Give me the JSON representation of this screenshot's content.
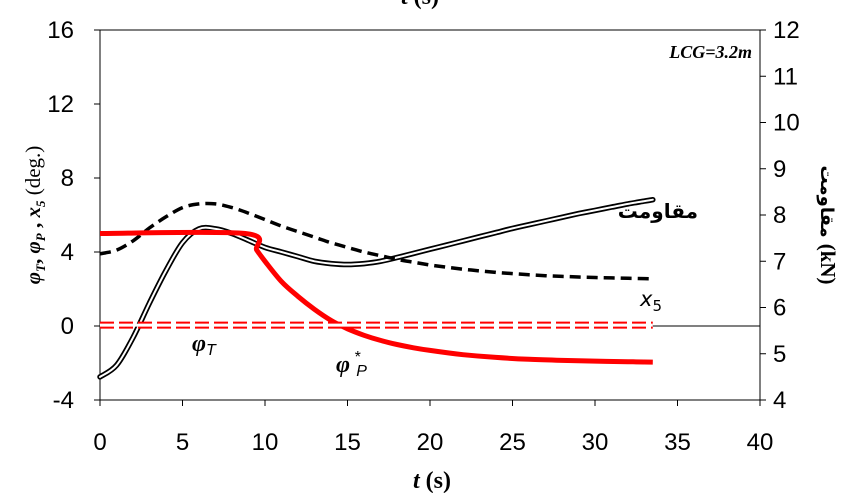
{
  "chart_data": {
    "type": "line",
    "x_axis": {
      "label_var": "t",
      "label_unit": "(s)",
      "range": [
        0,
        40
      ],
      "ticks": [
        0,
        5,
        10,
        15,
        20,
        25,
        30,
        35,
        40
      ],
      "tick_labels": [
        "0",
        "5",
        "10",
        "15",
        "20",
        "25",
        "30",
        "35",
        "40"
      ]
    },
    "y_left": {
      "label_vars": "φT, φP , x5",
      "label_unit": "(deg.)",
      "range": [
        -4,
        16
      ],
      "ticks": [
        -4,
        0,
        4,
        8,
        12,
        16
      ],
      "tick_labels": [
        "-4",
        "0",
        "4",
        "8",
        "12",
        "16"
      ]
    },
    "y_right": {
      "label_text": "مقاومت",
      "label_unit": "(kN)",
      "range": [
        4,
        12
      ],
      "ticks": [
        4,
        5,
        6,
        7,
        8,
        9,
        10,
        11,
        12
      ],
      "tick_labels": [
        "4",
        "5",
        "6",
        "7",
        "8",
        "9",
        "10",
        "11",
        "12"
      ]
    },
    "top_axis_title_partial": "t (s)",
    "grid": false,
    "box_label": "LCG=3.2m",
    "colors": {
      "phi_T": "#ff0000",
      "phi_P": "#ff0000",
      "x5": "#000000",
      "resistance": "#000000"
    },
    "series": [
      {
        "key": "resistance",
        "label": "مقاومت",
        "axis": "right",
        "style": "double-line",
        "x": [
          0,
          1,
          2,
          3,
          4,
          5,
          6,
          7,
          8,
          9,
          10,
          11,
          12,
          13,
          14,
          15,
          16,
          17,
          18,
          19,
          20,
          21,
          22,
          23,
          24,
          25,
          26,
          27,
          28,
          29,
          30,
          31,
          32,
          33,
          33.5
        ],
        "y": [
          4.5,
          4.75,
          5.35,
          6.1,
          6.8,
          7.4,
          7.7,
          7.7,
          7.6,
          7.45,
          7.3,
          7.2,
          7.1,
          7.0,
          6.95,
          6.93,
          6.95,
          7.0,
          7.08,
          7.17,
          7.26,
          7.35,
          7.44,
          7.53,
          7.62,
          7.71,
          7.79,
          7.87,
          7.95,
          8.03,
          8.1,
          8.17,
          8.24,
          8.3,
          8.33
        ]
      },
      {
        "key": "x5",
        "label": "x5",
        "axis": "left",
        "style": "dashed",
        "x": [
          0,
          1,
          2,
          3,
          4,
          5,
          6,
          7,
          8,
          9,
          10,
          11,
          12,
          13,
          14,
          15,
          16,
          17,
          18,
          19,
          20,
          21,
          22,
          23,
          24,
          25,
          26,
          27,
          28,
          29,
          30,
          31,
          32,
          33,
          33.5
        ],
        "y": [
          3.9,
          4.1,
          4.6,
          5.3,
          5.9,
          6.4,
          6.6,
          6.6,
          6.4,
          6.1,
          5.75,
          5.4,
          5.1,
          4.8,
          4.5,
          4.25,
          4.0,
          3.8,
          3.6,
          3.45,
          3.3,
          3.18,
          3.07,
          2.98,
          2.9,
          2.83,
          2.77,
          2.72,
          2.68,
          2.65,
          2.62,
          2.6,
          2.58,
          2.56,
          2.55
        ]
      },
      {
        "key": "phi_P",
        "label": "φ*P",
        "axis": "left",
        "style": "thick-solid",
        "x": [
          0,
          8.8,
          9.5,
          10,
          11,
          12,
          13,
          14,
          15,
          16,
          17,
          18,
          19,
          20,
          22,
          24,
          26,
          28,
          30,
          32,
          33.5
        ],
        "y": [
          5.0,
          5.0,
          4.1,
          3.5,
          2.4,
          1.6,
          0.9,
          0.3,
          -0.15,
          -0.5,
          -0.78,
          -1.0,
          -1.18,
          -1.32,
          -1.55,
          -1.7,
          -1.8,
          -1.86,
          -1.9,
          -1.93,
          -1.95
        ]
      },
      {
        "key": "phi_T",
        "label": "φT",
        "axis": "left",
        "style": "dashed-double-red",
        "x": [
          0,
          33.5
        ],
        "y": [
          0.05,
          0.05
        ]
      }
    ]
  }
}
